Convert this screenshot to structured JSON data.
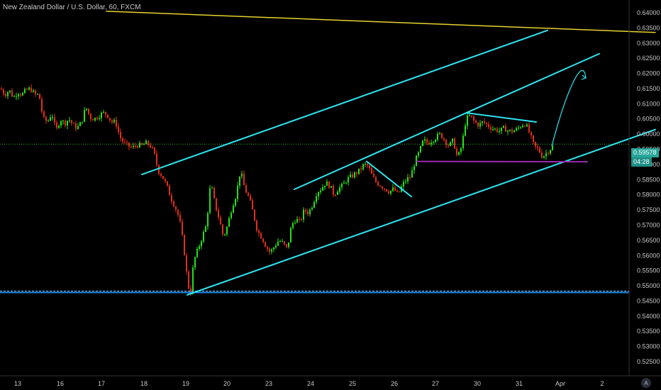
{
  "title": "New Zealand Dollar / U.S. Dollar, 60, FXCM",
  "current_price_label": "0.59578",
  "countdown_label": "04:28",
  "watermark_icon": "A",
  "colors": {
    "background": "#000000",
    "up_candle": "#26e01a",
    "down_candle": "#e0301a",
    "channel": "#2ee6f2",
    "yellow_line": "#e6d22e",
    "support_line": "#9c27b0",
    "base_line": "#1e88e5",
    "price_line": "#2fbf2f",
    "price_tag": "#26a69a"
  },
  "chart_data": {
    "type": "candlestick",
    "title": "New Zealand Dollar / U.S. Dollar, 60, FXCM",
    "x_tick_labels": [
      "13",
      "16",
      "17",
      "18",
      "19",
      "20",
      "23",
      "24",
      "25",
      "26",
      "27",
      "30",
      "31",
      "Apr",
      "2"
    ],
    "y_tick_labels": [
      "0.64000",
      "0.63500",
      "0.63000",
      "0.62500",
      "0.62000",
      "0.61500",
      "0.61000",
      "0.60500",
      "0.60000",
      "0.59500",
      "0.59000",
      "0.58500",
      "0.58000",
      "0.57500",
      "0.57000",
      "0.56500",
      "0.56000",
      "0.55500",
      "0.55000",
      "0.54500",
      "0.54000",
      "0.53500",
      "0.53000",
      "0.52500"
    ],
    "ylim": [
      0.5242,
      0.6425
    ],
    "last_price": 0.59578,
    "close_path": [
      [
        0,
        0.615
      ],
      [
        6,
        0.613
      ],
      [
        12,
        0.6145
      ],
      [
        18,
        0.612
      ],
      [
        24,
        0.614
      ],
      [
        30,
        0.613
      ],
      [
        36,
        0.6145
      ],
      [
        42,
        0.615
      ],
      [
        48,
        0.613
      ],
      [
        54,
        0.613
      ],
      [
        60,
        0.605
      ],
      [
        66,
        0.604
      ],
      [
        72,
        0.607
      ],
      [
        78,
        0.601
      ],
      [
        84,
        0.605
      ],
      [
        90,
        0.6035
      ],
      [
        96,
        0.605
      ],
      [
        102,
        0.603
      ],
      [
        108,
        0.602
      ],
      [
        114,
        0.604
      ],
      [
        120,
        0.609
      ],
      [
        126,
        0.6055
      ],
      [
        132,
        0.605
      ],
      [
        138,
        0.606
      ],
      [
        144,
        0.607
      ],
      [
        150,
        0.6065
      ],
      [
        156,
        0.604
      ],
      [
        162,
        0.604
      ],
      [
        168,
        0.599
      ],
      [
        174,
        0.597
      ],
      [
        180,
        0.596
      ],
      [
        186,
        0.5955
      ],
      [
        192,
        0.5965
      ],
      [
        198,
        0.596
      ],
      [
        204,
        0.597
      ],
      [
        210,
        0.5965
      ],
      [
        216,
        0.594
      ],
      [
        222,
        0.588
      ],
      [
        228,
        0.586
      ],
      [
        234,
        0.583
      ],
      [
        240,
        0.579
      ],
      [
        246,
        0.576
      ],
      [
        252,
        0.572
      ],
      [
        258,
        0.563
      ],
      [
        264,
        0.55
      ],
      [
        268,
        0.548
      ],
      [
        272,
        0.558
      ],
      [
        278,
        0.562
      ],
      [
        284,
        0.566
      ],
      [
        290,
        0.57
      ],
      [
        296,
        0.584
      ],
      [
        302,
        0.577
      ],
      [
        308,
        0.572
      ],
      [
        314,
        0.566
      ],
      [
        320,
        0.57
      ],
      [
        326,
        0.576
      ],
      [
        332,
        0.58
      ],
      [
        338,
        0.588
      ],
      [
        344,
        0.582
      ],
      [
        350,
        0.579
      ],
      [
        356,
        0.574
      ],
      [
        362,
        0.568
      ],
      [
        368,
        0.566
      ],
      [
        374,
        0.563
      ],
      [
        380,
        0.561
      ],
      [
        386,
        0.563
      ],
      [
        392,
        0.565
      ],
      [
        398,
        0.564
      ],
      [
        404,
        0.562
      ],
      [
        410,
        0.57
      ],
      [
        416,
        0.572
      ],
      [
        422,
        0.571
      ],
      [
        428,
        0.575
      ],
      [
        434,
        0.574
      ],
      [
        440,
        0.577
      ],
      [
        446,
        0.581
      ],
      [
        452,
        0.582
      ],
      [
        458,
        0.584
      ],
      [
        464,
        0.583
      ],
      [
        470,
        0.58
      ],
      [
        476,
        0.582
      ],
      [
        482,
        0.583
      ],
      [
        488,
        0.585
      ],
      [
        494,
        0.586
      ],
      [
        500,
        0.587
      ],
      [
        506,
        0.588
      ],
      [
        512,
        0.59
      ],
      [
        518,
        0.5895
      ],
      [
        524,
        0.586
      ],
      [
        530,
        0.584
      ],
      [
        536,
        0.583
      ],
      [
        542,
        0.582
      ],
      [
        548,
        0.581
      ],
      [
        554,
        0.582
      ],
      [
        560,
        0.58
      ],
      [
        566,
        0.583
      ],
      [
        572,
        0.585
      ],
      [
        578,
        0.586
      ],
      [
        584,
        0.591
      ],
      [
        590,
        0.594
      ],
      [
        596,
        0.598
      ],
      [
        602,
        0.597
      ],
      [
        608,
        0.598
      ],
      [
        614,
        0.599
      ],
      [
        620,
        0.6
      ],
      [
        626,
        0.598
      ],
      [
        632,
        0.596
      ],
      [
        638,
        0.598
      ],
      [
        644,
        0.592
      ],
      [
        650,
        0.596
      ],
      [
        656,
        0.605
      ],
      [
        662,
        0.606
      ],
      [
        668,
        0.604
      ],
      [
        674,
        0.603
      ],
      [
        680,
        0.604
      ],
      [
        686,
        0.603
      ],
      [
        692,
        0.602
      ],
      [
        698,
        0.6015
      ],
      [
        704,
        0.601
      ],
      [
        710,
        0.602
      ],
      [
        716,
        0.601
      ],
      [
        722,
        0.601
      ],
      [
        728,
        0.6015
      ],
      [
        734,
        0.603
      ],
      [
        740,
        0.6035
      ],
      [
        746,
        0.6
      ],
      [
        752,
        0.596
      ],
      [
        758,
        0.595
      ],
      [
        764,
        0.5925
      ],
      [
        770,
        0.594
      ],
      [
        774,
        0.595
      ],
      [
        778,
        0.5958
      ]
    ],
    "annotations": {
      "yellow_line": [
        [
          150,
          0.6405
        ],
        [
          924,
          0.6335
        ]
      ],
      "channel_upper_1": [
        [
          200,
          0.5867
        ],
        [
          772,
          0.6342
        ]
      ],
      "channel_upper_2": [
        [
          415,
          0.5818
        ],
        [
          845,
          0.6265
        ]
      ],
      "channel_lower": [
        [
          264,
          0.547
        ],
        [
          924,
          0.6015
        ]
      ],
      "resistance_1": [
        [
          517,
          0.591
        ],
        [
          580,
          0.5794
        ]
      ],
      "resistance_2": [
        [
          658,
          0.607
        ],
        [
          756,
          0.604
        ]
      ],
      "support": [
        [
          588,
          0.591
        ],
        [
          828,
          0.5909
        ]
      ],
      "projection_curve": [
        [
          778,
          0.596
        ],
        [
          798,
          0.614
        ],
        [
          822,
          0.6195
        ],
        [
          826,
          0.6185
        ]
      ],
      "base_line": 0.5478,
      "price_line": 0.5967
    }
  }
}
